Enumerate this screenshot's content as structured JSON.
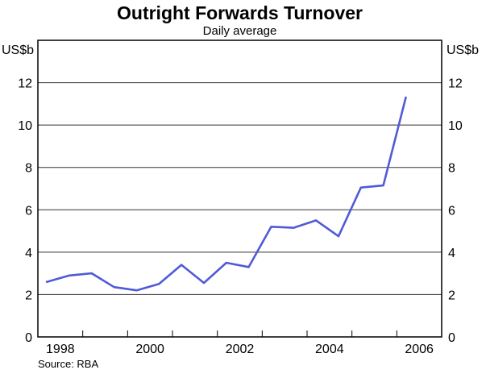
{
  "title": "Outright Forwards Turnover",
  "subtitle": "Daily average",
  "unit_left": "US$b",
  "unit_right": "US$b",
  "source": "Source: RBA",
  "colors": {
    "line": "#4f5bd5",
    "grid": "#333333",
    "frame": "#000000",
    "text": "#000000"
  },
  "chart_data": {
    "type": "line",
    "title": "Outright Forwards Turnover",
    "subtitle": "Daily average",
    "ylabel": "US$b",
    "xlabel": "",
    "ylim": [
      0,
      14
    ],
    "xlim": [
      1998,
      2007
    ],
    "grid": "horizontal",
    "legend": "none",
    "ytick_labels": [
      "0",
      "2",
      "4",
      "6",
      "8",
      "10",
      "12"
    ],
    "ytick_values": [
      0,
      2,
      4,
      6,
      8,
      10,
      12
    ],
    "gridline_values": [
      2,
      4,
      6,
      8,
      10,
      12
    ],
    "xtick_values": [
      1999,
      2000,
      2001,
      2002,
      2003,
      2004,
      2005,
      2006
    ],
    "xlabels": [
      {
        "text": "1998",
        "pos": 1998.5
      },
      {
        "text": "2000",
        "pos": 2000.5
      },
      {
        "text": "2002",
        "pos": 2002.5
      },
      {
        "text": "2004",
        "pos": 2004.5
      },
      {
        "text": "2006",
        "pos": 2006.5
      }
    ],
    "frequency": "semiannual",
    "series": [
      {
        "name": "Outright forwards turnover, daily average",
        "x": [
          1998.2,
          1998.7,
          1999.2,
          1999.7,
          2000.2,
          2000.7,
          2001.2,
          2001.7,
          2002.2,
          2002.7,
          2003.2,
          2003.7,
          2004.2,
          2004.7,
          2005.2,
          2005.7,
          2006.2
        ],
        "values": [
          2.6,
          2.9,
          3.0,
          2.35,
          2.2,
          2.5,
          3.4,
          2.55,
          3.5,
          3.3,
          5.2,
          5.15,
          5.5,
          4.75,
          7.05,
          7.15,
          11.3
        ]
      }
    ]
  }
}
